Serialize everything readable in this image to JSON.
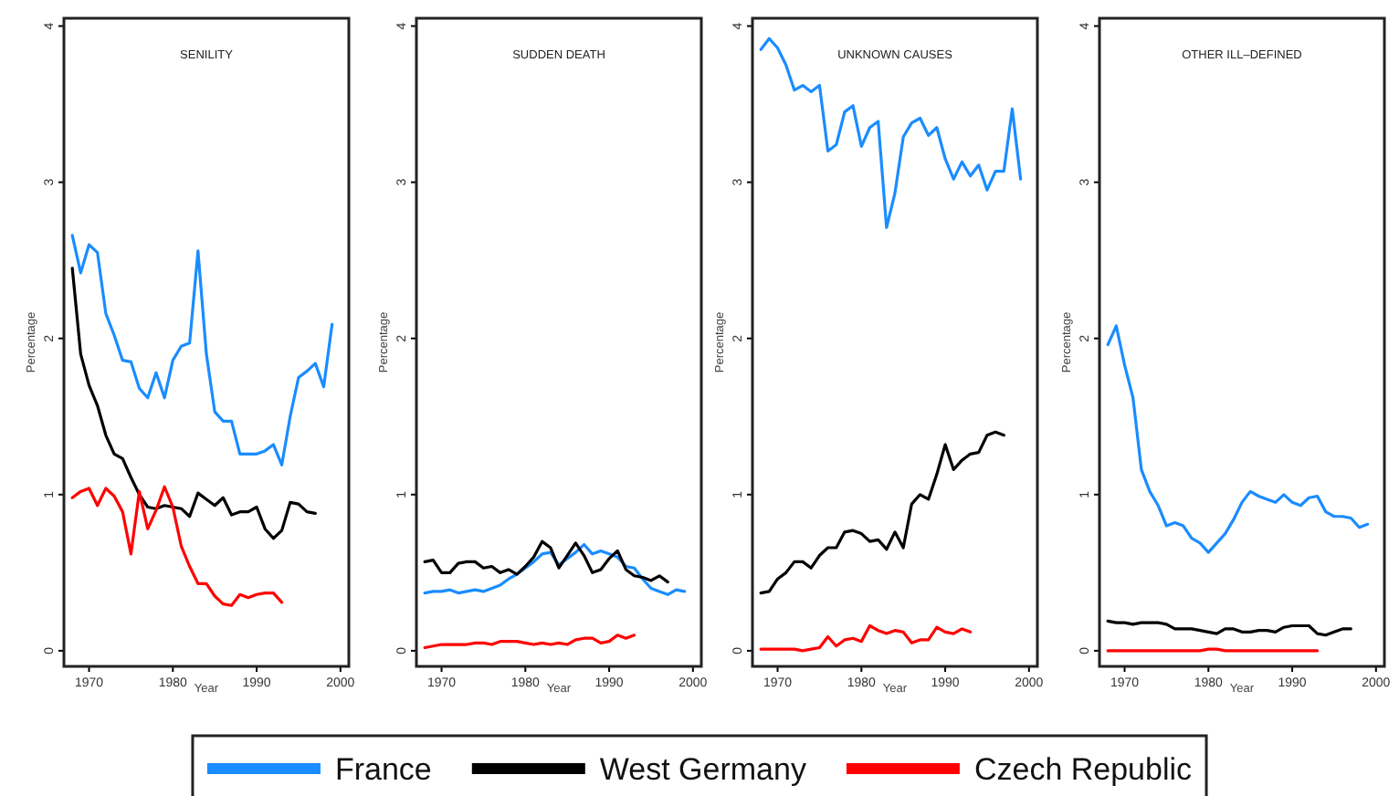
{
  "chart_data": [
    {
      "type": "line",
      "title": "SENILITY",
      "xlabel": "Year",
      "ylabel": "Percentage",
      "xlim": [
        1967,
        2001
      ],
      "ylim": [
        -0.1,
        4.05
      ],
      "xticks": [
        1970,
        1980,
        1990,
        2000
      ],
      "yticks": [
        0,
        1,
        2,
        3,
        4
      ],
      "grid": false,
      "legend": "bottom",
      "x": [
        1968,
        1969,
        1970,
        1971,
        1972,
        1973,
        1974,
        1975,
        1976,
        1977,
        1978,
        1979,
        1980,
        1981,
        1982,
        1983,
        1984,
        1985,
        1986,
        1987,
        1988,
        1989,
        1990,
        1991,
        1992,
        1993,
        1994,
        1995,
        1996,
        1997,
        1998,
        1999
      ],
      "series": [
        {
          "name": "France",
          "color": "#1a8cff",
          "values": [
            2.66,
            2.42,
            2.6,
            2.55,
            2.16,
            2.02,
            1.86,
            1.85,
            1.68,
            1.62,
            1.78,
            1.62,
            1.86,
            1.95,
            1.97,
            2.56,
            1.9,
            1.53,
            1.47,
            1.47,
            1.26,
            1.26,
            1.26,
            1.28,
            1.32,
            1.19,
            1.5,
            1.75,
            1.79,
            1.84,
            1.69,
            2.09
          ]
        },
        {
          "name": "West Germany",
          "color": "#000000",
          "values": [
            2.45,
            1.9,
            1.7,
            1.57,
            1.38,
            1.26,
            1.23,
            1.11,
            1.0,
            0.92,
            0.91,
            0.93,
            0.92,
            0.91,
            0.86,
            1.01,
            0.97,
            0.93,
            0.98,
            0.87,
            0.89,
            0.89,
            0.92,
            0.78,
            0.72,
            0.77,
            0.95,
            0.94,
            0.89,
            0.88,
            null,
            null
          ]
        },
        {
          "name": "Czech Republic",
          "color": "#ff0000",
          "values": [
            0.98,
            1.02,
            1.04,
            0.93,
            1.04,
            0.99,
            0.89,
            0.62,
            1.02,
            0.78,
            0.9,
            1.05,
            0.92,
            0.67,
            0.54,
            0.43,
            0.43,
            0.35,
            0.3,
            0.29,
            0.36,
            0.34,
            0.36,
            0.37,
            0.37,
            0.31,
            null,
            null,
            null,
            null,
            null,
            null
          ]
        }
      ]
    },
    {
      "type": "line",
      "title": "SUDDEN DEATH",
      "xlabel": "Year",
      "ylabel": "Percentage",
      "xlim": [
        1967,
        2001
      ],
      "ylim": [
        -0.1,
        4.05
      ],
      "xticks": [
        1970,
        1980,
        1990,
        2000
      ],
      "yticks": [
        0,
        1,
        2,
        3,
        4
      ],
      "grid": false,
      "x": [
        1968,
        1969,
        1970,
        1971,
        1972,
        1973,
        1974,
        1975,
        1976,
        1977,
        1978,
        1979,
        1980,
        1981,
        1982,
        1983,
        1984,
        1985,
        1986,
        1987,
        1988,
        1989,
        1990,
        1991,
        1992,
        1993,
        1994,
        1995,
        1996,
        1997,
        1998,
        1999
      ],
      "series": [
        {
          "color": "#1a8cff",
          "values": [
            0.37,
            0.38,
            0.38,
            0.39,
            0.37,
            0.38,
            0.39,
            0.38,
            0.4,
            0.42,
            0.46,
            0.49,
            0.53,
            0.57,
            0.62,
            0.63,
            0.55,
            0.59,
            0.63,
            0.68,
            0.62,
            0.64,
            0.62,
            0.6,
            0.54,
            0.53,
            0.46,
            0.4,
            0.38,
            0.36,
            0.39,
            0.38
          ]
        },
        {
          "color": "#000000",
          "values": [
            0.57,
            0.58,
            0.5,
            0.5,
            0.56,
            0.57,
            0.57,
            0.53,
            0.54,
            0.5,
            0.52,
            0.49,
            0.54,
            0.6,
            0.7,
            0.66,
            0.53,
            0.61,
            0.69,
            0.61,
            0.5,
            0.52,
            0.59,
            0.64,
            0.52,
            0.48,
            0.47,
            0.45,
            0.48,
            0.44,
            null,
            null
          ]
        },
        {
          "color": "#ff0000",
          "values": [
            0.02,
            0.03,
            0.04,
            0.04,
            0.04,
            0.04,
            0.05,
            0.05,
            0.04,
            0.06,
            0.06,
            0.06,
            0.05,
            0.04,
            0.05,
            0.04,
            0.05,
            0.04,
            0.07,
            0.08,
            0.08,
            0.05,
            0.06,
            0.1,
            0.08,
            0.1,
            null,
            null,
            null,
            null,
            null,
            null
          ]
        }
      ]
    },
    {
      "type": "line",
      "title": "UNKNOWN CAUSES",
      "xlabel": "Year",
      "ylabel": "Percentage",
      "xlim": [
        1967,
        2001
      ],
      "ylim": [
        -0.1,
        4.05
      ],
      "xticks": [
        1970,
        1980,
        1990,
        2000
      ],
      "yticks": [
        0,
        1,
        2,
        3,
        4
      ],
      "grid": false,
      "x": [
        1968,
        1969,
        1970,
        1971,
        1972,
        1973,
        1974,
        1975,
        1976,
        1977,
        1978,
        1979,
        1980,
        1981,
        1982,
        1983,
        1984,
        1985,
        1986,
        1987,
        1988,
        1989,
        1990,
        1991,
        1992,
        1993,
        1994,
        1995,
        1996,
        1997,
        1998,
        1999
      ],
      "series": [
        {
          "color": "#1a8cff",
          "values": [
            3.85,
            3.92,
            3.86,
            3.75,
            3.59,
            3.62,
            3.58,
            3.62,
            3.2,
            3.24,
            3.45,
            3.49,
            3.23,
            3.35,
            3.39,
            2.71,
            2.93,
            3.29,
            3.38,
            3.41,
            3.3,
            3.35,
            3.15,
            3.02,
            3.13,
            3.04,
            3.11,
            2.95,
            3.07,
            3.07,
            3.47,
            3.02
          ]
        },
        {
          "color": "#000000",
          "values": [
            0.37,
            0.38,
            0.46,
            0.5,
            0.57,
            0.57,
            0.53,
            0.61,
            0.66,
            0.66,
            0.76,
            0.77,
            0.75,
            0.7,
            0.71,
            0.65,
            0.76,
            0.66,
            0.94,
            1.0,
            0.97,
            1.13,
            1.32,
            1.16,
            1.22,
            1.26,
            1.27,
            1.38,
            1.4,
            1.38,
            null,
            null
          ]
        },
        {
          "color": "#ff0000",
          "values": [
            0.01,
            0.01,
            0.01,
            0.01,
            0.01,
            0.0,
            0.01,
            0.02,
            0.09,
            0.03,
            0.07,
            0.08,
            0.06,
            0.16,
            0.13,
            0.11,
            0.13,
            0.12,
            0.05,
            0.07,
            0.07,
            0.15,
            0.12,
            0.11,
            0.14,
            0.12,
            null,
            null,
            null,
            null,
            null,
            null
          ]
        }
      ]
    },
    {
      "type": "line",
      "title": "OTHER ILL–DEFINED",
      "xlabel": "Year",
      "ylabel": "Percentage",
      "xlim": [
        1967,
        2001
      ],
      "ylim": [
        -0.1,
        4.05
      ],
      "xticks": [
        1970,
        1980,
        1990,
        2000
      ],
      "yticks": [
        0,
        1,
        2,
        3,
        4
      ],
      "grid": false,
      "x": [
        1968,
        1969,
        1970,
        1971,
        1972,
        1973,
        1974,
        1975,
        1976,
        1977,
        1978,
        1979,
        1980,
        1981,
        1982,
        1983,
        1984,
        1985,
        1986,
        1987,
        1988,
        1989,
        1990,
        1991,
        1992,
        1993,
        1994,
        1995,
        1996,
        1997,
        1998,
        1999
      ],
      "series": [
        {
          "color": "#1a8cff",
          "values": [
            1.96,
            2.08,
            1.83,
            1.62,
            1.16,
            1.02,
            0.93,
            0.8,
            0.82,
            0.8,
            0.72,
            0.69,
            0.63,
            0.69,
            0.75,
            0.84,
            0.95,
            1.02,
            0.99,
            0.97,
            0.95,
            1.0,
            0.95,
            0.93,
            0.98,
            0.99,
            0.89,
            0.86,
            0.86,
            0.85,
            0.79,
            0.81
          ]
        },
        {
          "color": "#000000",
          "values": [
            0.19,
            0.18,
            0.18,
            0.17,
            0.18,
            0.18,
            0.18,
            0.17,
            0.14,
            0.14,
            0.14,
            0.13,
            0.12,
            0.11,
            0.14,
            0.14,
            0.12,
            0.12,
            0.13,
            0.13,
            0.12,
            0.15,
            0.16,
            0.16,
            0.16,
            0.11,
            0.1,
            0.12,
            0.14,
            0.14,
            null,
            null
          ]
        },
        {
          "color": "#ff0000",
          "values": [
            0.0,
            0.0,
            0.0,
            0.0,
            0.0,
            0.0,
            0.0,
            0.0,
            0.0,
            0.0,
            0.0,
            0.0,
            0.01,
            0.01,
            0.0,
            0.0,
            0.0,
            0.0,
            0.0,
            0.0,
            0.0,
            0.0,
            0.0,
            0.0,
            0.0,
            0.0,
            null,
            null,
            null,
            null,
            null,
            null
          ]
        }
      ]
    }
  ]
}
